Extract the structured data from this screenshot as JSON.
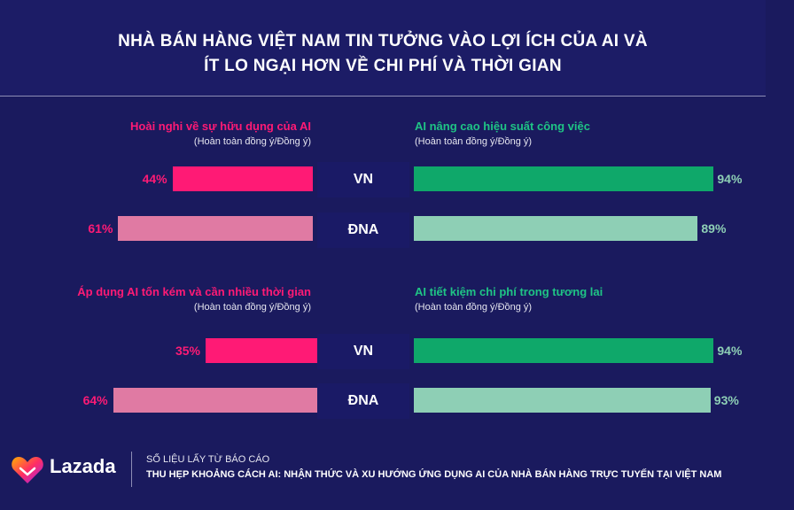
{
  "header": {
    "title_line1": "NHÀ BÁN HÀNG VIỆT NAM TIN TƯỞNG VÀO LỢI ÍCH CỦA AI VÀ",
    "title_line2": "ÍT LO NGẠI HƠN VỀ CHI PHÍ VÀ THỜI GIAN"
  },
  "colors": {
    "background": "#1a1a5e",
    "pink_strong": "#ff1a75",
    "pink_light": "#e07aa3",
    "green_strong": "#0fa86a",
    "green_light": "#8ecfb5"
  },
  "chart_data": [
    {
      "type": "bar",
      "title": "Hoài nghi về sự hữu dụng của AI",
      "subtitle": "(Hoàn toàn đồng ý/Đồng ý)",
      "categories": [
        "VN",
        "ĐNA"
      ],
      "values": [
        44,
        61
      ],
      "value_labels": [
        "44%",
        "61%"
      ],
      "orientation": "horizontal-left",
      "ylim": [
        0,
        100
      ]
    },
    {
      "type": "bar",
      "title": "AI nâng cao hiệu suất công việc",
      "subtitle": "(Hoàn toàn đồng ý/Đồng ý)",
      "categories": [
        "VN",
        "ĐNA"
      ],
      "values": [
        94,
        89
      ],
      "value_labels": [
        "94%",
        "89%"
      ],
      "orientation": "horizontal-right",
      "ylim": [
        0,
        100
      ]
    },
    {
      "type": "bar",
      "title": "Áp dụng AI tốn kém và cần nhiều thời gian",
      "subtitle": "(Hoàn toàn đồng ý/Đồng ý)",
      "categories": [
        "VN",
        "ĐNA"
      ],
      "values": [
        35,
        64
      ],
      "value_labels": [
        "35%",
        "64%"
      ],
      "orientation": "horizontal-left",
      "ylim": [
        0,
        100
      ]
    },
    {
      "type": "bar",
      "title": "AI tiết kiệm chi phí trong tương lai",
      "subtitle": "(Hoàn toàn đồng ý/Đồng ý)",
      "categories": [
        "VN",
        "ĐNA"
      ],
      "values": [
        94,
        93
      ],
      "value_labels": [
        "94%",
        "93%"
      ],
      "orientation": "horizontal-right",
      "ylim": [
        0,
        100
      ]
    }
  ],
  "footer": {
    "brand": "Lazada",
    "logo_icon": "lazada-heart-icon",
    "source_line1": "SỐ LIỆU LẤY TỪ BÁO CÁO",
    "source_line2": "THU HẸP KHOẢNG CÁCH AI: NHẬN THỨC VÀ XU HƯỚNG ỨNG DỤNG AI CỦA NHÀ BÁN HÀNG TRỰC TUYẾN TẠI VIỆT NAM"
  }
}
